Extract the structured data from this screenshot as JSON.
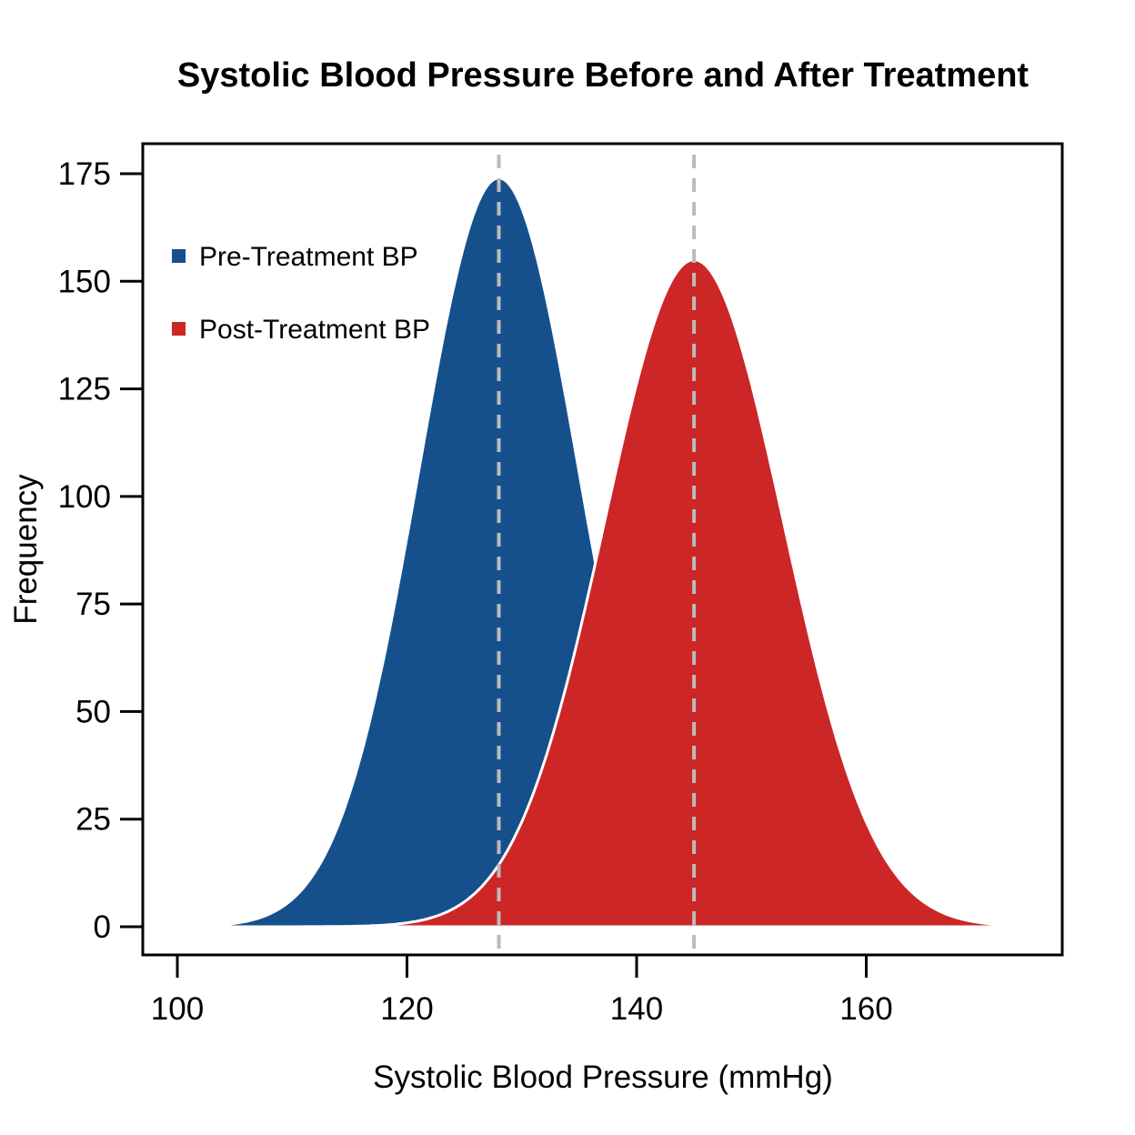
{
  "chart_data": {
    "type": "area",
    "title": "Systolic Blood Pressure Before and After Treatment",
    "xlabel": "Systolic Blood Pressure (mmHg)",
    "ylabel": "Frequency",
    "x_ticks": [
      100,
      120,
      140,
      160
    ],
    "y_ticks": [
      0,
      25,
      50,
      75,
      100,
      125,
      150,
      175
    ],
    "xlim": [
      97,
      177
    ],
    "ylim": [
      0,
      182
    ],
    "grid": false,
    "box": true,
    "legend_position": "top-left-inside",
    "series": [
      {
        "name": "Pre-Treatment BP",
        "color": "#15508C",
        "distribution": "normal",
        "mean": 128,
        "sd": 7.0,
        "peak_frequency": 174,
        "x_range": [
          100,
          174
        ],
        "sample_x": [
          100,
          105,
          110,
          115,
          120,
          125,
          128,
          130,
          135,
          140,
          145,
          150,
          155,
          160,
          165,
          170,
          174
        ],
        "sample_y": [
          0.1,
          0.8,
          6.4,
          31.0,
          90.5,
          158.7,
          174,
          167.0,
          105.5,
          40.0,
          9.1,
          1.2,
          0.1,
          0,
          0,
          0,
          0
        ]
      },
      {
        "name": "Post-Treatment BP",
        "color": "#CC2626",
        "distribution": "normal",
        "mean": 145,
        "sd": 7.8,
        "peak_frequency": 155,
        "x_range": [
          100,
          174
        ],
        "sample_x": [
          100,
          105,
          110,
          115,
          120,
          125,
          130,
          135,
          140,
          145,
          150,
          155,
          160,
          165,
          170,
          174
        ],
        "sample_y": [
          0,
          0,
          0,
          0.1,
          0.9,
          5.8,
          24.4,
          68.2,
          126.2,
          155,
          126.2,
          68.2,
          24.4,
          5.8,
          0.9,
          0.2
        ]
      }
    ],
    "mean_lines": {
      "values": [
        128,
        145
      ],
      "color": "#BBBBBB",
      "style": "dashed"
    },
    "outline_color": "#FFFFFF",
    "axis_color": "#000000",
    "background_color": "#FFFFFF"
  }
}
